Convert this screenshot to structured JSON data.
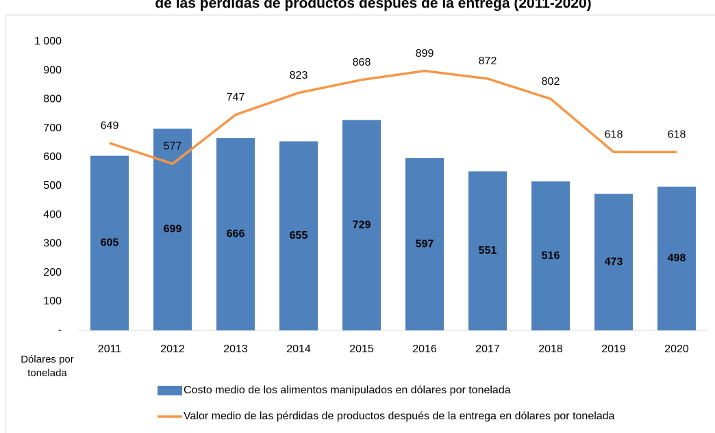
{
  "chart_data": {
    "type": "bar",
    "title": "de las pérdidas de productos después de la entrega (2011-2020)",
    "y_label": "Dólares por tonelada",
    "categories": [
      "2011",
      "2012",
      "2013",
      "2014",
      "2015",
      "2016",
      "2017",
      "2018",
      "2019",
      "2020"
    ],
    "series": [
      {
        "name": "Costo medio de los alimentos manipulados en dólares por tonelada",
        "type": "bar",
        "color": "#4f81bd",
        "values": [
          605,
          699,
          666,
          655,
          729,
          597,
          551,
          516,
          473,
          498
        ]
      },
      {
        "name": "Valor medio de las pérdidas de productos después de la entrega en dólares por tonelada",
        "type": "line",
        "color": "#f79646",
        "values": [
          649,
          577,
          747,
          823,
          868,
          899,
          872,
          802,
          618,
          618
        ]
      }
    ],
    "ylim": [
      0,
      1000
    ],
    "yticks": [
      {
        "value": 0,
        "label": "-"
      },
      100,
      200,
      300,
      400,
      500,
      600,
      700,
      800,
      900,
      {
        "value": 1000,
        "label": "1 000"
      }
    ],
    "grid": false
  }
}
